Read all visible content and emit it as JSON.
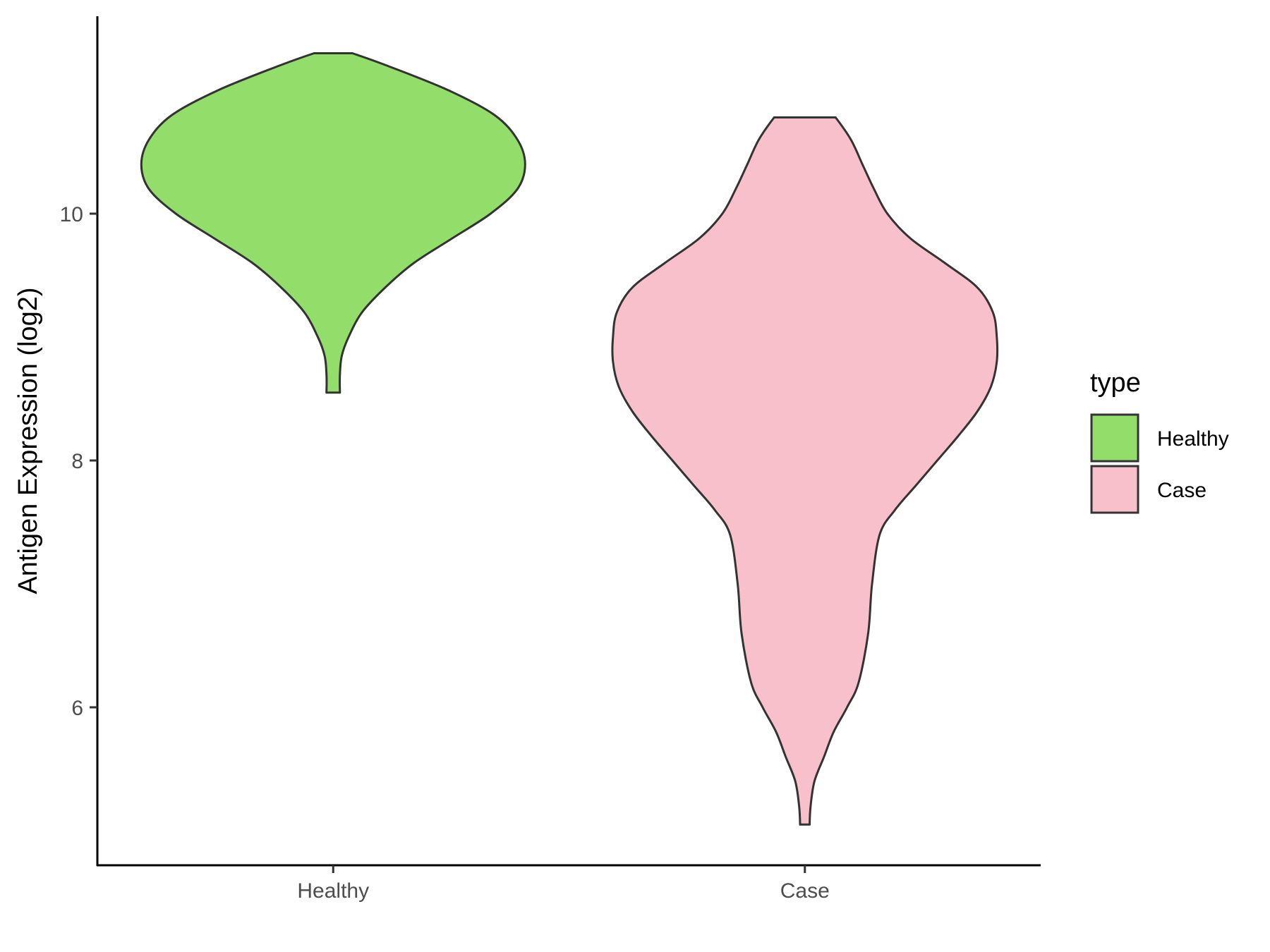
{
  "chart_data": {
    "type": "violin",
    "title": "",
    "xlabel": "",
    "ylabel": "Antigen Expression (log2)",
    "categories": [
      "Healthy",
      "Case"
    ],
    "yticks": [
      6,
      8,
      10
    ],
    "ylim": [
      4.72,
      11.6
    ],
    "grid": false,
    "legend": {
      "title": "type",
      "position": "right",
      "entries": [
        "Healthy",
        "Case"
      ]
    },
    "series": [
      {
        "name": "Healthy",
        "color": "#93DD6A",
        "min": 8.55,
        "max": 11.3,
        "profile": [
          [
            11.3,
            0.1
          ],
          [
            11.2,
            0.28
          ],
          [
            11.0,
            0.6
          ],
          [
            10.8,
            0.84
          ],
          [
            10.6,
            0.96
          ],
          [
            10.4,
            1.0
          ],
          [
            10.2,
            0.96
          ],
          [
            10.0,
            0.82
          ],
          [
            9.8,
            0.62
          ],
          [
            9.6,
            0.42
          ],
          [
            9.4,
            0.27
          ],
          [
            9.2,
            0.15
          ],
          [
            9.0,
            0.08
          ],
          [
            8.85,
            0.045
          ],
          [
            8.7,
            0.035
          ],
          [
            8.55,
            0.035
          ]
        ]
      },
      {
        "name": "Case",
        "color": "#F8C0CB",
        "min": 5.05,
        "max": 10.78,
        "profile": [
          [
            10.78,
            0.16
          ],
          [
            10.6,
            0.24
          ],
          [
            10.4,
            0.3
          ],
          [
            10.2,
            0.36
          ],
          [
            10.0,
            0.43
          ],
          [
            9.8,
            0.55
          ],
          [
            9.6,
            0.73
          ],
          [
            9.4,
            0.9
          ],
          [
            9.2,
            0.98
          ],
          [
            9.0,
            1.0
          ],
          [
            8.8,
            1.0
          ],
          [
            8.6,
            0.97
          ],
          [
            8.4,
            0.9
          ],
          [
            8.2,
            0.8
          ],
          [
            8.0,
            0.69
          ],
          [
            7.8,
            0.58
          ],
          [
            7.6,
            0.47
          ],
          [
            7.4,
            0.39
          ],
          [
            7.0,
            0.35
          ],
          [
            6.6,
            0.33
          ],
          [
            6.2,
            0.28
          ],
          [
            6.0,
            0.22
          ],
          [
            5.8,
            0.15
          ],
          [
            5.6,
            0.1
          ],
          [
            5.4,
            0.05
          ],
          [
            5.2,
            0.03
          ],
          [
            5.05,
            0.025
          ]
        ]
      }
    ]
  }
}
